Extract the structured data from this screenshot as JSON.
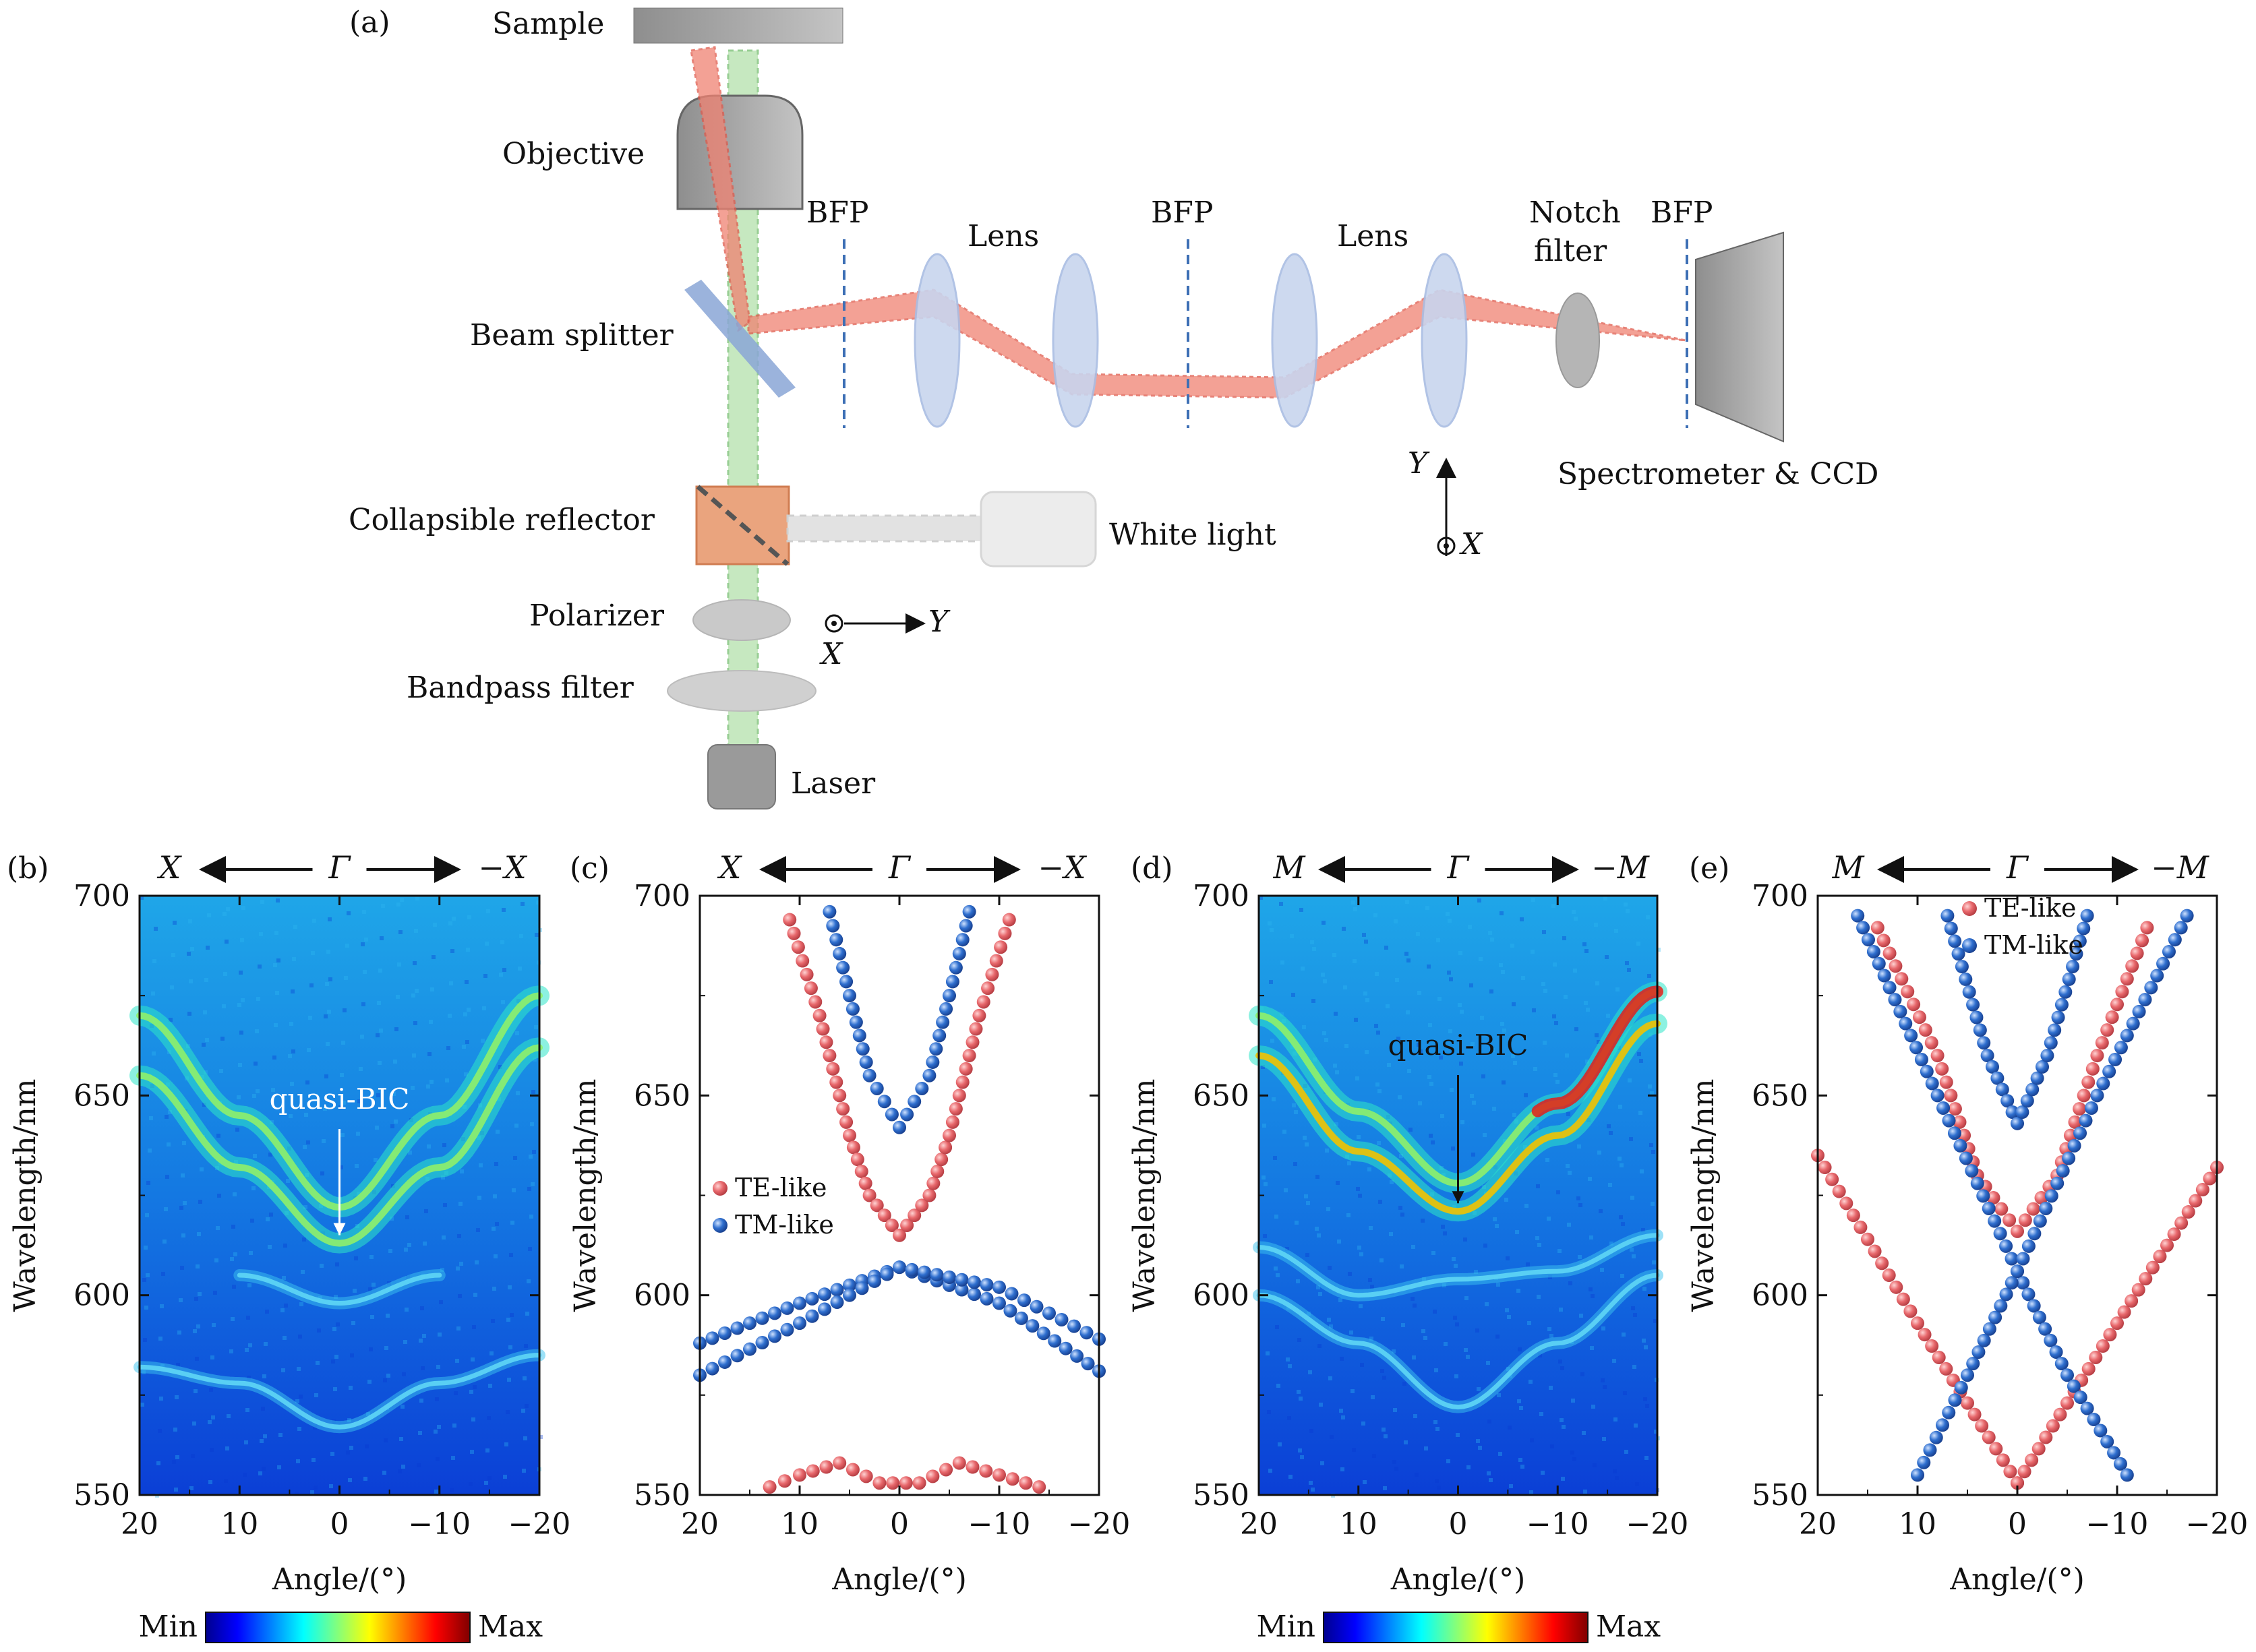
{
  "panel_a": {
    "label": "(a)",
    "sample": "Sample",
    "objective": "Objective",
    "beam_splitter": "Beam splitter",
    "bfp1": "BFP",
    "bfp2": "BFP",
    "bfp3": "BFP",
    "lens1": "Lens",
    "lens2": "Lens",
    "notch_line1": "Notch",
    "notch_line2": "filter",
    "spectrometer": "Spectrometer & CCD",
    "collapsible": "Collapsible reflector",
    "white_light": "White light",
    "polarizer": "Polarizer",
    "bandpass": "Bandpass filter",
    "laser": "Laser",
    "axis_y": "Y",
    "axis_x": "X"
  },
  "chart_data": [
    {
      "panel": "(b)",
      "type": "heatmap",
      "direction": {
        "left": "X",
        "center": "Γ",
        "right": "−X"
      },
      "xlabel": "Angle/(°)",
      "ylabel": "Wavelength/nm",
      "xlim": [
        20,
        -20
      ],
      "ylim": [
        550,
        700
      ],
      "xticks": [
        "20",
        "10",
        "0",
        "−10",
        "−20"
      ],
      "yticks": [
        "550",
        "600",
        "650",
        "700"
      ],
      "annotation": "quasi-BIC",
      "colorbar": {
        "min": "Min",
        "max": "Max"
      },
      "bands": [
        {
          "x": [
            20,
            10,
            0,
            -10,
            -20
          ],
          "y": [
            655,
            632,
            613,
            632,
            662
          ]
        },
        {
          "x": [
            20,
            10,
            0,
            -10,
            -20
          ],
          "y": [
            670,
            645,
            622,
            645,
            675
          ]
        },
        {
          "x": [
            10,
            0,
            -10
          ],
          "y": [
            605,
            598,
            605
          ]
        },
        {
          "x": [
            20,
            10,
            0,
            -10,
            -20
          ],
          "y": [
            582,
            578,
            567,
            578,
            585
          ]
        }
      ]
    },
    {
      "panel": "(c)",
      "type": "scatter",
      "direction": {
        "left": "X",
        "center": "Γ",
        "right": "−X"
      },
      "xlabel": "Angle/(°)",
      "ylabel": "Wavelength/nm",
      "xlim": [
        20,
        -20
      ],
      "ylim": [
        550,
        700
      ],
      "xticks": [
        "20",
        "10",
        "0",
        "−10",
        "−20"
      ],
      "yticks": [
        "550",
        "600",
        "650",
        "700"
      ],
      "legend": "left-middle",
      "series": [
        {
          "name": "TE-like",
          "color": "#e8686c",
          "points": [
            {
              "x": 11,
              "y": 694
            },
            {
              "x": 8,
              "y": 670
            },
            {
              "x": 5,
              "y": 640
            },
            {
              "x": 3,
              "y": 625
            },
            {
              "x": 0,
              "y": 615
            },
            {
              "x": -3,
              "y": 625
            },
            {
              "x": -5,
              "y": 640
            },
            {
              "x": -8,
              "y": 670
            },
            {
              "x": -11,
              "y": 694
            },
            {
              "x": 13,
              "y": 552
            },
            {
              "x": 10,
              "y": 555
            },
            {
              "x": 6,
              "y": 558
            },
            {
              "x": 2,
              "y": 553
            },
            {
              "x": -2,
              "y": 553
            },
            {
              "x": -6,
              "y": 558
            },
            {
              "x": -10,
              "y": 555
            },
            {
              "x": -14,
              "y": 552
            }
          ]
        },
        {
          "name": "TM-like",
          "color": "#2f6fcf",
          "points": [
            {
              "x": 7,
              "y": 696
            },
            {
              "x": 5,
              "y": 675
            },
            {
              "x": 3,
              "y": 655
            },
            {
              "x": 0,
              "y": 642
            },
            {
              "x": -3,
              "y": 655
            },
            {
              "x": -5,
              "y": 675
            },
            {
              "x": -7,
              "y": 696
            },
            {
              "x": 20,
              "y": 588
            },
            {
              "x": 10,
              "y": 598
            },
            {
              "x": 0,
              "y": 607
            },
            {
              "x": -10,
              "y": 598
            },
            {
              "x": -20,
              "y": 581
            },
            {
              "x": 20,
              "y": 580
            },
            {
              "x": 10,
              "y": 593
            },
            {
              "x": 0,
              "y": 607
            },
            {
              "x": -10,
              "y": 602
            },
            {
              "x": -20,
              "y": 589
            }
          ]
        }
      ]
    },
    {
      "panel": "(d)",
      "type": "heatmap",
      "direction": {
        "left": "M",
        "center": "Γ",
        "right": "−M"
      },
      "xlabel": "Angle/(°)",
      "ylabel": "Wavelength/nm",
      "xlim": [
        20,
        -20
      ],
      "ylim": [
        550,
        700
      ],
      "xticks": [
        "20",
        "10",
        "0",
        "−10",
        "−20"
      ],
      "yticks": [
        "550",
        "600",
        "650",
        "700"
      ],
      "annotation": "quasi-BIC",
      "colorbar": {
        "min": "Min",
        "max": "Max"
      },
      "bands": [
        {
          "x": [
            20,
            10,
            0,
            -10,
            -20
          ],
          "y": [
            660,
            636,
            621,
            640,
            668
          ]
        },
        {
          "x": [
            20,
            10,
            0,
            -10,
            -20
          ],
          "y": [
            670,
            646,
            628,
            648,
            676
          ]
        },
        {
          "x": [
            20,
            10,
            0,
            -10,
            -20
          ],
          "y": [
            612,
            600,
            604,
            606,
            615
          ]
        },
        {
          "x": [
            20,
            10,
            0,
            -10,
            -20
          ],
          "y": [
            600,
            588,
            572,
            588,
            605
          ]
        }
      ]
    },
    {
      "panel": "(e)",
      "type": "scatter",
      "direction": {
        "left": "M",
        "center": "Γ",
        "right": "−M"
      },
      "xlabel": "Angle/(°)",
      "ylabel": "Wavelength/nm",
      "xlim": [
        20,
        -20
      ],
      "ylim": [
        550,
        700
      ],
      "xticks": [
        "20",
        "10",
        "0",
        "−10",
        "−20"
      ],
      "yticks": [
        "550",
        "600",
        "650",
        "700"
      ],
      "legend": "top-center",
      "series": [
        {
          "name": "TE-like",
          "color": "#e8686c",
          "points": [
            {
              "x": 14,
              "y": 692
            },
            {
              "x": 8,
              "y": 660
            },
            {
              "x": 4,
              "y": 630
            },
            {
              "x": 0,
              "y": 616
            },
            {
              "x": -4,
              "y": 630
            },
            {
              "x": -8,
              "y": 660
            },
            {
              "x": -13,
              "y": 692
            },
            {
              "x": 20,
              "y": 635
            },
            {
              "x": 10,
              "y": 593
            },
            {
              "x": 0,
              "y": 553
            },
            {
              "x": 0,
              "y": 553
            },
            {
              "x": -10,
              "y": 593
            },
            {
              "x": -20,
              "y": 632
            }
          ]
        },
        {
          "name": "TM-like",
          "color": "#2f6fcf",
          "points": [
            {
              "x": 16,
              "y": 695
            },
            {
              "x": 8,
              "y": 650
            },
            {
              "x": 0,
              "y": 606
            },
            {
              "x": -5,
              "y": 580
            },
            {
              "x": -11,
              "y": 555
            },
            {
              "x": 10,
              "y": 555
            },
            {
              "x": 5,
              "y": 580
            },
            {
              "x": 0,
              "y": 606
            },
            {
              "x": -8,
              "y": 650
            },
            {
              "x": -17,
              "y": 695
            },
            {
              "x": 7,
              "y": 695
            },
            {
              "x": 3,
              "y": 660
            },
            {
              "x": 0,
              "y": 643
            },
            {
              "x": -3,
              "y": 660
            },
            {
              "x": -7,
              "y": 695
            }
          ]
        }
      ]
    }
  ]
}
